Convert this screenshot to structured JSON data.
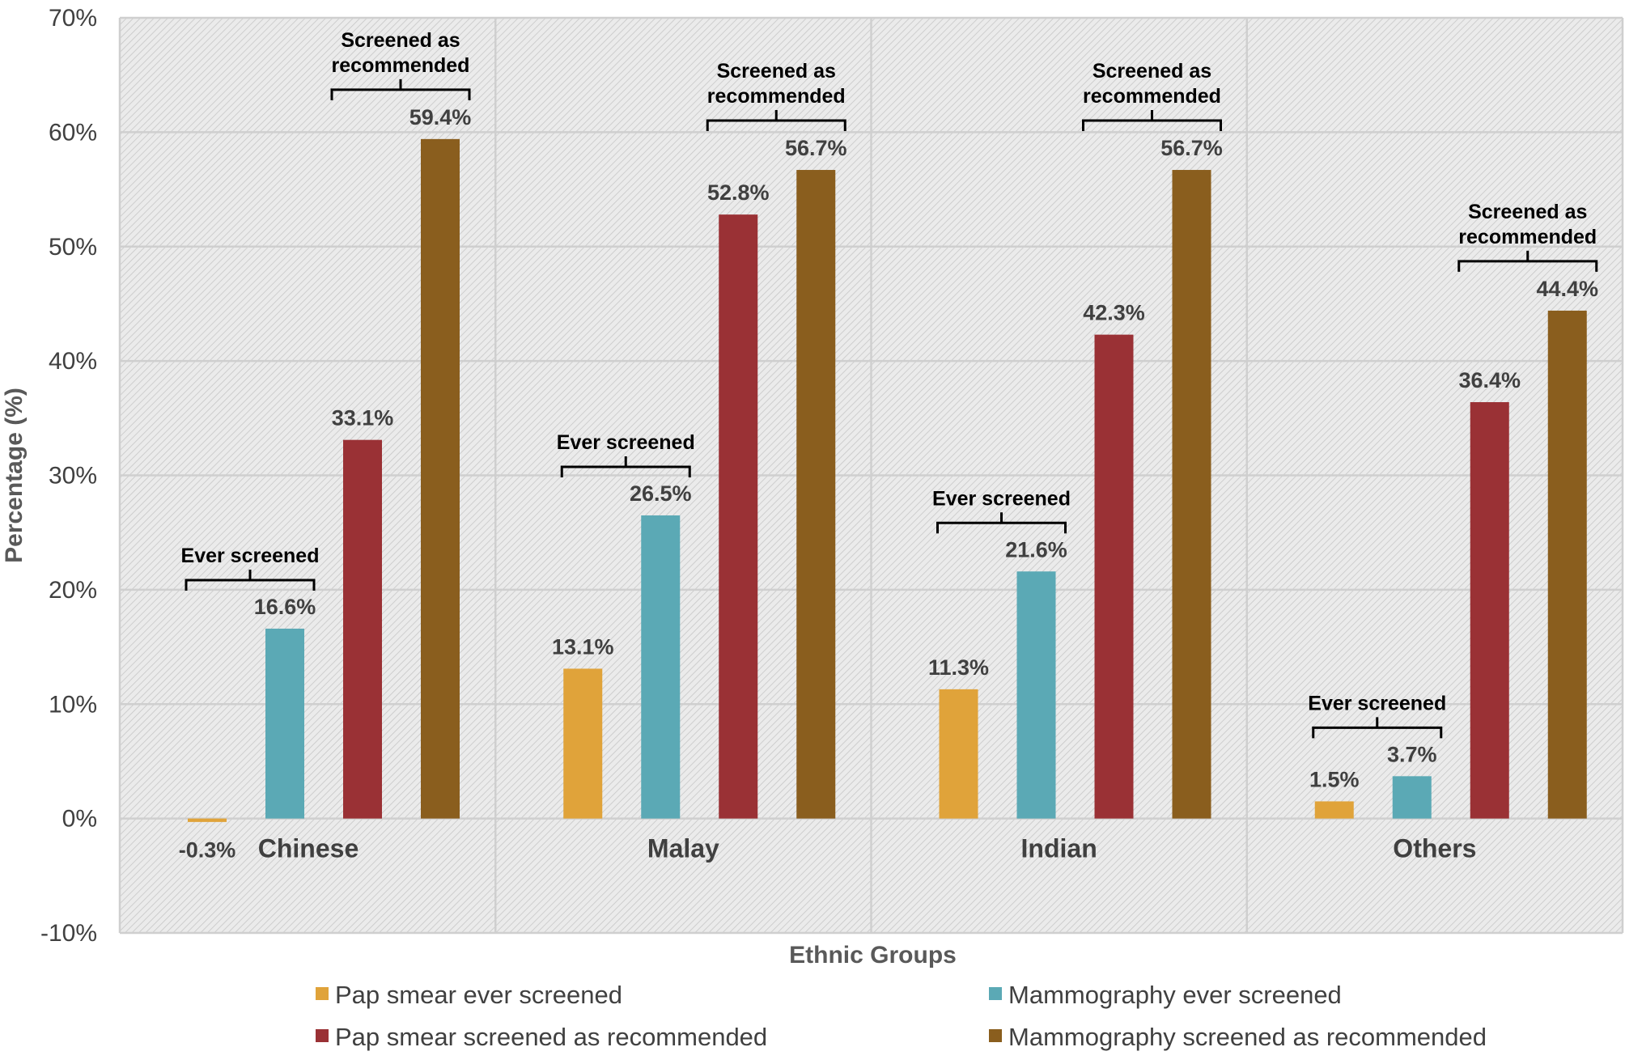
{
  "chart_data": {
    "type": "bar",
    "title": "",
    "xlabel": "Ethnic Groups",
    "ylabel": "Percentage (%)",
    "ylim": [
      -10,
      70
    ],
    "y_ticks": [
      -10,
      0,
      10,
      20,
      30,
      40,
      50,
      60,
      70
    ],
    "y_tick_labels": [
      "-10%",
      "0%",
      "10%",
      "20%",
      "30%",
      "40%",
      "50%",
      "60%",
      "70%"
    ],
    "grid": true,
    "legend_position": "bottom",
    "categories": [
      "Chinese",
      "Malay",
      "Indian",
      "Others"
    ],
    "series": [
      {
        "name": "Pap smear ever screened",
        "color": "#E0A33A",
        "values": [
          -0.3,
          13.1,
          11.3,
          1.5
        ],
        "labels": [
          "-0.3%",
          "13.1%",
          "11.3%",
          "1.5%"
        ]
      },
      {
        "name": "Mammography ever screened",
        "color": "#5BA9B5",
        "values": [
          16.6,
          26.5,
          21.6,
          3.7
        ],
        "labels": [
          "16.6%",
          "26.5%",
          "21.6%",
          "3.7%"
        ]
      },
      {
        "name": "Pap smear screened as recommended",
        "color": "#9A3135",
        "values": [
          33.1,
          52.8,
          42.3,
          36.4
        ],
        "labels": [
          "33.1%",
          "52.8%",
          "42.3%",
          "36.4%"
        ]
      },
      {
        "name": "Mammography screened as recommended",
        "color": "#8A5E1E",
        "values": [
          59.4,
          56.7,
          56.7,
          44.4
        ],
        "labels": [
          "59.4%",
          "56.7%",
          "56.7%",
          "44.4%"
        ]
      }
    ],
    "annotations": {
      "ever_screened": [
        "Ever screened"
      ],
      "screened_as_recommended": [
        "Screened as",
        "recommended"
      ]
    }
  }
}
